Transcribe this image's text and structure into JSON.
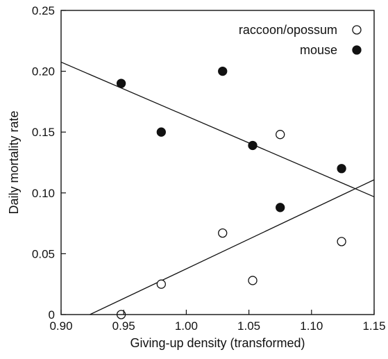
{
  "chart_data": {
    "type": "scatter",
    "xlabel": "Giving-up density (transformed)",
    "ylabel": "Daily mortality rate",
    "xlim": [
      0.9,
      1.15
    ],
    "ylim": [
      0,
      0.25
    ],
    "x_ticks": [
      0.9,
      0.95,
      1.0,
      1.05,
      1.1,
      1.15
    ],
    "x_tick_labels": [
      "0.90",
      "0.95",
      "1.00",
      "1.05",
      "1.10",
      "1.15"
    ],
    "y_ticks": [
      0,
      0.05,
      0.1,
      0.15,
      0.2,
      0.25
    ],
    "y_tick_labels": [
      "0",
      "0.05",
      "0.10",
      "0.15",
      "0.20",
      "0.25"
    ],
    "grid": false,
    "legend_position": "top-right",
    "series": [
      {
        "name": "raccoon/opossum",
        "marker": "open-circle",
        "points": [
          {
            "x": 0.948,
            "y": 0.0
          },
          {
            "x": 0.98,
            "y": 0.025
          },
          {
            "x": 1.029,
            "y": 0.067
          },
          {
            "x": 1.053,
            "y": 0.028
          },
          {
            "x": 1.075,
            "y": 0.148
          },
          {
            "x": 1.124,
            "y": 0.06
          }
        ],
        "fit_line": {
          "x": [
            0.923,
            1.15
          ],
          "y": [
            0.0,
            0.1108
          ]
        }
      },
      {
        "name": "mouse",
        "marker": "filled-circle",
        "points": [
          {
            "x": 0.948,
            "y": 0.19
          },
          {
            "x": 0.98,
            "y": 0.15
          },
          {
            "x": 1.029,
            "y": 0.2
          },
          {
            "x": 1.053,
            "y": 0.139
          },
          {
            "x": 1.075,
            "y": 0.088
          },
          {
            "x": 1.124,
            "y": 0.12
          }
        ],
        "fit_line": {
          "x": [
            0.9,
            1.15
          ],
          "y": [
            0.2075,
            0.0968
          ]
        }
      }
    ],
    "colors": {
      "axis": "#111111",
      "marker_fill": "#111111",
      "background": "#ffffff"
    }
  }
}
